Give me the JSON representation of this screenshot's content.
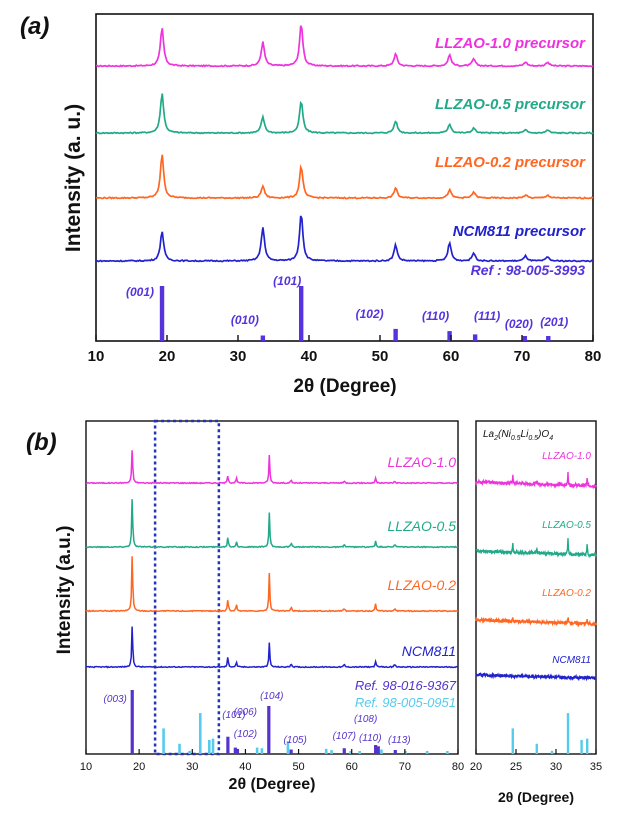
{
  "chart_data": [
    {
      "panel": "(a)",
      "type": "line",
      "xlabel": "2θ (Degree)",
      "ylabel": "Intensity (a. u.)",
      "xlim": [
        10,
        80
      ],
      "xticks": [
        "10",
        "20",
        "30",
        "40",
        "50",
        "60",
        "70",
        "80"
      ],
      "y_ticks_shown": false,
      "grid": false,
      "series": [
        {
          "name": "LLZAO-1.0 precursor",
          "color": "#ee33dd",
          "peaks": [
            [
              19.3,
              38
            ],
            [
              33.5,
              24
            ],
            [
              38.9,
              42
            ],
            [
              52.2,
              12
            ],
            [
              59.8,
              11
            ],
            [
              63.2,
              7
            ],
            [
              70.5,
              4
            ],
            [
              73.6,
              4
            ]
          ]
        },
        {
          "name": "LLZAO-0.5 precursor",
          "color": "#22aa88",
          "peaks": [
            [
              19.3,
              40
            ],
            [
              33.5,
              16
            ],
            [
              38.9,
              32
            ],
            [
              52.2,
              12
            ],
            [
              59.8,
              9
            ],
            [
              63.2,
              5
            ],
            [
              70.5,
              3
            ],
            [
              73.6,
              3
            ]
          ]
        },
        {
          "name": "LLZAO-0.2 precursor",
          "color": "#ff6622",
          "peaks": [
            [
              19.3,
              44
            ],
            [
              33.5,
              12
            ],
            [
              38.9,
              32
            ],
            [
              52.2,
              10
            ],
            [
              59.8,
              8
            ],
            [
              63.2,
              6
            ],
            [
              70.5,
              3
            ],
            [
              73.6,
              3
            ]
          ]
        },
        {
          "name": "NCM811 precursor",
          "color": "#2222cc",
          "peaks": [
            [
              19.3,
              30
            ],
            [
              33.5,
              34
            ],
            [
              38.9,
              48
            ],
            [
              52.2,
              16
            ],
            [
              59.8,
              18
            ],
            [
              63.2,
              8
            ],
            [
              70.5,
              5
            ],
            [
              73.6,
              4
            ]
          ]
        }
      ],
      "reference": {
        "name": "Ref : 98-005-3993",
        "color": "#5533dd",
        "lines": [
          {
            "hkl": "(001)",
            "x": 19.3,
            "intensity": 100
          },
          {
            "hkl": "(010)",
            "x": 33.5,
            "intensity": 10
          },
          {
            "hkl": "(101)",
            "x": 38.9,
            "intensity": 100
          },
          {
            "hkl": "(102)",
            "x": 52.2,
            "intensity": 22
          },
          {
            "hkl": "(110)",
            "x": 59.8,
            "intensity": 18
          },
          {
            "hkl": "(111)",
            "x": 63.4,
            "intensity": 12
          },
          {
            "hkl": "(020)",
            "x": 70.4,
            "intensity": 8
          },
          {
            "hkl": "(201)",
            "x": 73.7,
            "intensity": 7
          }
        ]
      }
    },
    {
      "panel": "(b)",
      "type": "line",
      "xlabel": "2θ (Degree)",
      "ylabel": "Intensity (a.u.)",
      "xlim": [
        10,
        80
      ],
      "xticks": [
        "10",
        "20",
        "30",
        "40",
        "50",
        "60",
        "70",
        "80"
      ],
      "y_ticks_shown": false,
      "highlight_region": [
        23,
        35
      ],
      "series": [
        {
          "name": "LLZAO-1.0",
          "color": "#ee33dd",
          "peaks": [
            [
              18.7,
              36
            ],
            [
              36.7,
              8
            ],
            [
              38.3,
              5
            ],
            [
              44.5,
              28
            ],
            [
              48.6,
              3
            ],
            [
              58.6,
              2
            ],
            [
              64.5,
              5
            ],
            [
              68.1,
              2
            ]
          ]
        },
        {
          "name": "LLZAO-0.5",
          "color": "#22aa88",
          "peaks": [
            [
              18.7,
              52
            ],
            [
              36.7,
              10
            ],
            [
              38.3,
              6
            ],
            [
              44.5,
              34
            ],
            [
              48.6,
              4
            ],
            [
              58.6,
              3
            ],
            [
              64.5,
              6
            ],
            [
              68.1,
              3
            ]
          ]
        },
        {
          "name": "LLZAO-0.2",
          "color": "#ff6622",
          "peaks": [
            [
              18.7,
              60
            ],
            [
              36.7,
              12
            ],
            [
              38.3,
              7
            ],
            [
              44.5,
              38
            ],
            [
              48.6,
              4
            ],
            [
              58.6,
              3
            ],
            [
              64.5,
              7
            ],
            [
              68.1,
              3
            ]
          ]
        },
        {
          "name": "NCM811",
          "color": "#2222cc",
          "peaks": [
            [
              18.7,
              44
            ],
            [
              36.7,
              10
            ],
            [
              38.3,
              5
            ],
            [
              44.5,
              24
            ],
            [
              48.6,
              4
            ],
            [
              58.6,
              3
            ],
            [
              64.5,
              6
            ],
            [
              68.1,
              3
            ]
          ]
        }
      ],
      "references": [
        {
          "name": "Ref. 98-016-9367",
          "color": "#5533cc",
          "lines": [
            {
              "hkl": "(003)",
              "x": 18.7,
              "intensity": 100
            },
            {
              "hkl": "(101)",
              "x": 36.7,
              "intensity": 27
            },
            {
              "hkl": "(006)",
              "x": 38.1,
              "intensity": 10
            },
            {
              "hkl": "(102)",
              "x": 38.5,
              "intensity": 8
            },
            {
              "hkl": "(104)",
              "x": 44.4,
              "intensity": 75
            },
            {
              "hkl": "(105)",
              "x": 48.6,
              "intensity": 7
            },
            {
              "hkl": "(107)",
              "x": 58.6,
              "intensity": 9
            },
            {
              "hkl": "(108)",
              "x": 64.5,
              "intensity": 14
            },
            {
              "hkl": "(110)",
              "x": 65.0,
              "intensity": 12
            },
            {
              "hkl": "(113)",
              "x": 68.2,
              "intensity": 6
            }
          ]
        },
        {
          "name": "Ref. 98-005-0951",
          "color": "#55ccee",
          "lines": [
            {
              "x": 24.6,
              "intensity": 40
            },
            {
              "x": 27.6,
              "intensity": 16
            },
            {
              "x": 29.5,
              "intensity": 5
            },
            {
              "x": 31.5,
              "intensity": 64
            },
            {
              "x": 33.2,
              "intensity": 22
            },
            {
              "x": 33.9,
              "intensity": 24
            },
            {
              "x": 42.2,
              "intensity": 10
            },
            {
              "x": 43.1,
              "intensity": 9
            },
            {
              "x": 48.0,
              "intensity": 20
            },
            {
              "x": 55.2,
              "intensity": 8
            },
            {
              "x": 56.2,
              "intensity": 6
            },
            {
              "x": 59.8,
              "intensity": 4
            },
            {
              "x": 61.5,
              "intensity": 4
            },
            {
              "x": 65.6,
              "intensity": 7
            },
            {
              "x": 70.1,
              "intensity": 3
            },
            {
              "x": 74.2,
              "intensity": 3
            },
            {
              "x": 78.0,
              "intensity": 2
            }
          ]
        }
      ]
    },
    {
      "panel": "inset",
      "type": "line",
      "title": "La2(Ni0.5Li0.5)O4",
      "title_parts": {
        "a": "La",
        "b": "2",
        "c": "(Ni",
        "d": "0.5",
        "e": "Li",
        "f": "0.5",
        "g": ")O",
        "h": "4"
      },
      "xlabel": "2θ (Degree)",
      "xlim": [
        20,
        35
      ],
      "xticks": [
        "20",
        "25",
        "30",
        "35"
      ],
      "series": [
        {
          "name": "LLZAO-1.0",
          "color": "#ee33dd",
          "peaks": [
            [
              24.6,
              8
            ],
            [
              27.6,
              4
            ],
            [
              31.5,
              12
            ],
            [
              33.9,
              7
            ]
          ]
        },
        {
          "name": "LLZAO-0.5",
          "color": "#22aa88",
          "peaks": [
            [
              24.6,
              9
            ],
            [
              27.6,
              4
            ],
            [
              31.5,
              16
            ],
            [
              33.9,
              10
            ]
          ]
        },
        {
          "name": "LLZAO-0.2",
          "color": "#ff6622",
          "peaks": [
            [
              24.6,
              3
            ],
            [
              31.5,
              6
            ],
            [
              33.9,
              4
            ]
          ]
        },
        {
          "name": "NCM811",
          "color": "#2222cc",
          "peaks": []
        }
      ],
      "reference": {
        "color": "#55ccee",
        "lines": [
          {
            "x": 24.6,
            "intensity": 40
          },
          {
            "x": 27.6,
            "intensity": 16
          },
          {
            "x": 29.5,
            "intensity": 5
          },
          {
            "x": 31.5,
            "intensity": 64
          },
          {
            "x": 33.2,
            "intensity": 22
          },
          {
            "x": 33.9,
            "intensity": 24
          }
        ]
      }
    }
  ]
}
